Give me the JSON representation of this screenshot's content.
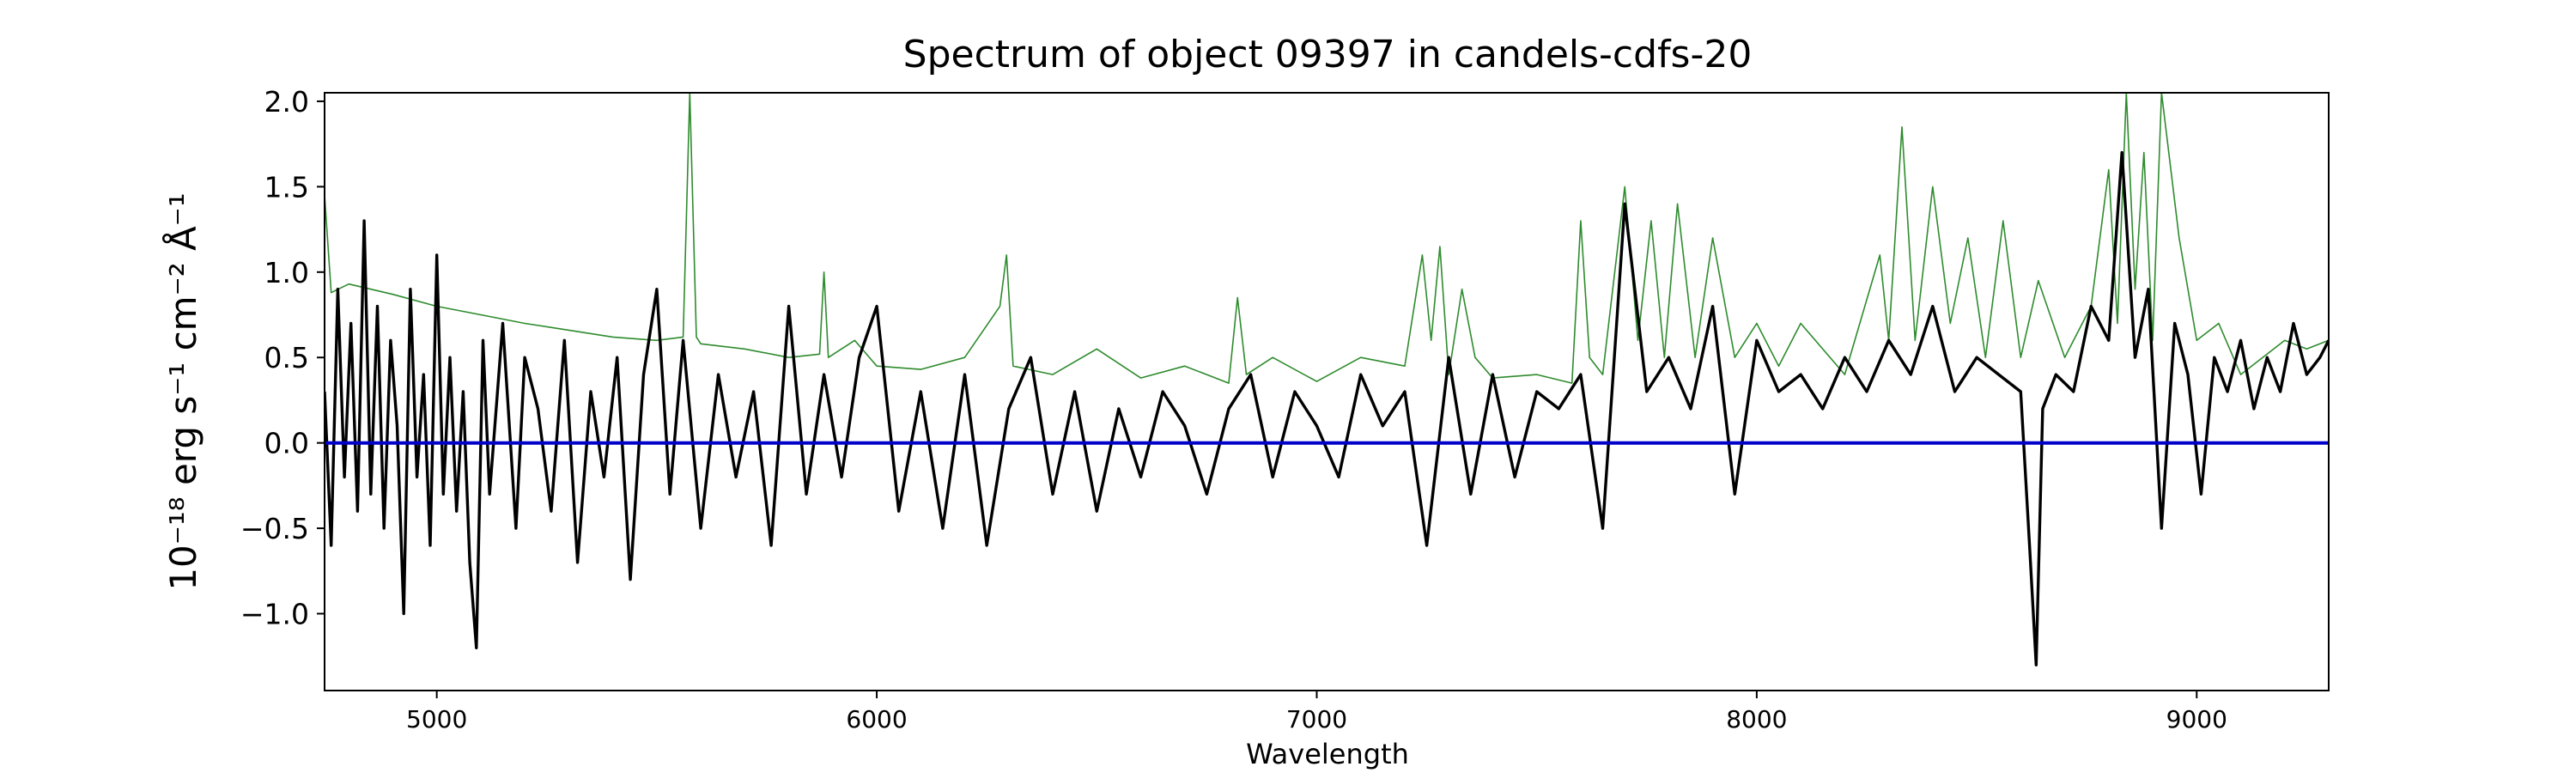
{
  "chart_data": {
    "type": "line",
    "title": "Spectrum of object 09397 in candels-cdfs-20",
    "xlabel": "Wavelength",
    "ylabel": "10⁻¹⁸ erg s⁻¹ cm⁻² Å⁻¹",
    "xlim": [
      4745,
      9300
    ],
    "ylim": [
      -1.45,
      2.05
    ],
    "xticks": [
      5000,
      6000,
      7000,
      8000,
      9000
    ],
    "yticks": [
      -1.0,
      -0.5,
      0.0,
      0.5,
      1.0,
      1.5,
      2.0
    ],
    "xtick_labels": [
      "5000",
      "6000",
      "7000",
      "8000",
      "9000"
    ],
    "ytick_labels": [
      "−1.0",
      "−0.5",
      "0.0",
      "0.5",
      "1.0",
      "1.5",
      "2.0"
    ],
    "grid": false,
    "series": [
      {
        "role": "flux",
        "color": "#000000",
        "x": [
          4745,
          4760,
          4775,
          4790,
          4805,
          4820,
          4835,
          4850,
          4865,
          4880,
          4895,
          4910,
          4925,
          4940,
          4955,
          4970,
          4985,
          5000,
          5015,
          5030,
          5045,
          5060,
          5075,
          5090,
          5105,
          5120,
          5150,
          5180,
          5200,
          5230,
          5260,
          5290,
          5320,
          5350,
          5380,
          5410,
          5440,
          5470,
          5500,
          5530,
          5560,
          5600,
          5640,
          5680,
          5720,
          5760,
          5800,
          5840,
          5880,
          5920,
          5960,
          6000,
          6050,
          6100,
          6150,
          6200,
          6250,
          6300,
          6350,
          6400,
          6450,
          6500,
          6550,
          6600,
          6650,
          6700,
          6750,
          6800,
          6850,
          6900,
          6950,
          7000,
          7050,
          7100,
          7150,
          7200,
          7250,
          7300,
          7350,
          7400,
          7450,
          7500,
          7550,
          7600,
          7650,
          7700,
          7750,
          7800,
          7850,
          7900,
          7950,
          8000,
          8050,
          8100,
          8150,
          8200,
          8250,
          8300,
          8350,
          8400,
          8450,
          8500,
          8550,
          8600,
          8620,
          8635,
          8650,
          8680,
          8720,
          8760,
          8800,
          8830,
          8860,
          8890,
          8920,
          8950,
          8980,
          9010,
          9040,
          9070,
          9100,
          9130,
          9160,
          9190,
          9220,
          9250,
          9280,
          9300
        ],
        "y": [
          0.3,
          -0.6,
          0.9,
          -0.2,
          0.7,
          -0.4,
          1.3,
          -0.3,
          0.8,
          -0.5,
          0.6,
          0.1,
          -1.0,
          0.9,
          -0.2,
          0.4,
          -0.6,
          1.1,
          -0.3,
          0.5,
          -0.4,
          0.3,
          -0.7,
          -1.2,
          0.6,
          -0.3,
          0.7,
          -0.5,
          0.5,
          0.2,
          -0.4,
          0.6,
          -0.7,
          0.3,
          -0.2,
          0.5,
          -0.8,
          0.4,
          0.9,
          -0.3,
          0.6,
          -0.5,
          0.4,
          -0.2,
          0.3,
          -0.6,
          0.8,
          -0.3,
          0.4,
          -0.2,
          0.5,
          0.8,
          -0.4,
          0.3,
          -0.5,
          0.4,
          -0.6,
          0.2,
          0.5,
          -0.3,
          0.3,
          -0.4,
          0.2,
          -0.2,
          0.3,
          0.1,
          -0.3,
          0.2,
          0.4,
          -0.2,
          0.3,
          0.1,
          -0.2,
          0.4,
          0.1,
          0.3,
          -0.6,
          0.5,
          -0.3,
          0.4,
          -0.2,
          0.3,
          0.2,
          0.4,
          -0.5,
          1.4,
          0.3,
          0.5,
          0.2,
          0.8,
          -0.3,
          0.6,
          0.3,
          0.4,
          0.2,
          0.5,
          0.3,
          0.6,
          0.4,
          0.8,
          0.3,
          0.5,
          0.4,
          0.3,
          -0.6,
          -1.3,
          0.2,
          0.4,
          0.3,
          0.8,
          0.6,
          1.7,
          0.5,
          0.9,
          -0.5,
          0.7,
          0.4,
          -0.3,
          0.5,
          0.3,
          0.6,
          0.2,
          0.5,
          0.3,
          0.7,
          0.4,
          0.5,
          0.6
        ]
      },
      {
        "role": "error",
        "color": "#2e8b2e",
        "x": [
          4745,
          4760,
          4800,
          4900,
          5000,
          5100,
          5200,
          5300,
          5400,
          5500,
          5560,
          5575,
          5590,
          5600,
          5700,
          5800,
          5870,
          5880,
          5890,
          5950,
          6000,
          6100,
          6200,
          6280,
          6295,
          6310,
          6400,
          6500,
          6600,
          6700,
          6800,
          6820,
          6840,
          6900,
          7000,
          7100,
          7200,
          7240,
          7260,
          7280,
          7300,
          7330,
          7360,
          7400,
          7500,
          7580,
          7600,
          7620,
          7650,
          7700,
          7730,
          7760,
          7790,
          7820,
          7860,
          7900,
          7950,
          8000,
          8050,
          8100,
          8200,
          8280,
          8300,
          8330,
          8360,
          8400,
          8440,
          8480,
          8520,
          8560,
          8600,
          8640,
          8660,
          8700,
          8760,
          8800,
          8820,
          8840,
          8860,
          8880,
          8900,
          8920,
          8960,
          9000,
          9050,
          9100,
          9150,
          9200,
          9250,
          9300
        ],
        "y": [
          1.45,
          0.88,
          0.93,
          0.87,
          0.8,
          0.75,
          0.7,
          0.66,
          0.62,
          0.6,
          0.62,
          2.05,
          0.62,
          0.58,
          0.55,
          0.5,
          0.52,
          1.0,
          0.5,
          0.6,
          0.45,
          0.43,
          0.5,
          0.8,
          1.1,
          0.45,
          0.4,
          0.55,
          0.38,
          0.45,
          0.35,
          0.85,
          0.4,
          0.5,
          0.36,
          0.5,
          0.45,
          1.1,
          0.6,
          1.15,
          0.4,
          0.9,
          0.5,
          0.38,
          0.4,
          0.35,
          1.3,
          0.5,
          0.4,
          1.5,
          0.6,
          1.3,
          0.5,
          1.4,
          0.5,
          1.2,
          0.5,
          0.7,
          0.45,
          0.7,
          0.4,
          1.1,
          0.6,
          1.85,
          0.6,
          1.5,
          0.7,
          1.2,
          0.5,
          1.3,
          0.5,
          0.95,
          0.8,
          0.5,
          0.8,
          1.6,
          0.7,
          2.05,
          0.9,
          1.7,
          0.6,
          2.05,
          1.2,
          0.6,
          0.7,
          0.4,
          0.5,
          0.6,
          0.55,
          0.6
        ]
      },
      {
        "role": "zero",
        "color": "#0000cc",
        "x": [
          4745,
          9300
        ],
        "y": [
          0,
          0
        ]
      }
    ]
  }
}
